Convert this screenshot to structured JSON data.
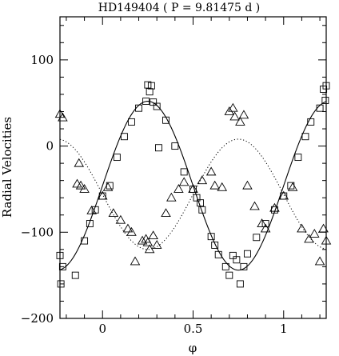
{
  "chart_data": {
    "type": "scatter",
    "title": "HD149404 ( P = 9.81475 d )",
    "xlabel": "φ",
    "ylabel": "Radial Velocities",
    "xlim": [
      -0.235,
      1.235
    ],
    "ylim": [
      -200,
      150
    ],
    "x_ticks": [
      0,
      0.5,
      1
    ],
    "x_tick_labels": [
      "0",
      "0.5",
      "1"
    ],
    "y_ticks": [
      -200,
      -100,
      0,
      100
    ],
    "y_tick_labels": [
      "−200",
      "−100",
      "0",
      "100"
    ],
    "grid": false,
    "legend": "none",
    "series": [
      {
        "marker": "square",
        "points": [
          [
            -0.235,
            -127
          ],
          [
            -0.23,
            -160
          ],
          [
            -0.22,
            -140
          ],
          [
            -0.15,
            -150
          ],
          [
            -0.1,
            -110
          ],
          [
            -0.07,
            -90
          ],
          [
            -0.04,
            -74
          ],
          [
            0.0,
            -58
          ],
          [
            0.04,
            -46
          ],
          [
            0.08,
            -13
          ],
          [
            0.12,
            11
          ],
          [
            0.16,
            28
          ],
          [
            0.2,
            44
          ],
          [
            0.24,
            52
          ],
          [
            0.25,
            71
          ],
          [
            0.26,
            63
          ],
          [
            0.27,
            70
          ],
          [
            0.28,
            51
          ],
          [
            0.3,
            46
          ],
          [
            0.31,
            -2
          ],
          [
            0.35,
            30
          ],
          [
            0.4,
            0
          ],
          [
            0.45,
            -30
          ],
          [
            0.5,
            -50
          ],
          [
            0.52,
            -60
          ],
          [
            0.54,
            -66
          ],
          [
            0.55,
            -74
          ],
          [
            0.6,
            -105
          ],
          [
            0.62,
            -115
          ],
          [
            0.64,
            -126
          ],
          [
            0.68,
            -140
          ],
          [
            0.7,
            -150
          ],
          [
            0.72,
            -127
          ],
          [
            0.74,
            -132
          ],
          [
            0.76,
            -160
          ],
          [
            0.78,
            -140
          ],
          [
            0.8,
            -125
          ],
          [
            0.85,
            -106
          ],
          [
            0.9,
            -90
          ],
          [
            0.95,
            -74
          ],
          [
            1.0,
            -58
          ],
          [
            1.04,
            -46
          ],
          [
            1.08,
            -13
          ],
          [
            1.12,
            11
          ],
          [
            1.15,
            28
          ],
          [
            1.2,
            44
          ],
          [
            1.22,
            66
          ],
          [
            1.23,
            53
          ],
          [
            1.235,
            70
          ]
        ]
      },
      {
        "marker": "triangle",
        "points": [
          [
            -0.235,
            37
          ],
          [
            -0.22,
            33
          ],
          [
            -0.13,
            -20
          ],
          [
            -0.14,
            -44
          ],
          [
            -0.12,
            -46
          ],
          [
            -0.1,
            -50
          ],
          [
            -0.06,
            -75
          ],
          [
            0.0,
            -58
          ],
          [
            0.03,
            -48
          ],
          [
            0.06,
            -78
          ],
          [
            0.1,
            -86
          ],
          [
            0.14,
            -96
          ],
          [
            0.16,
            -100
          ],
          [
            0.18,
            -134
          ],
          [
            0.22,
            -110
          ],
          [
            0.24,
            -108
          ],
          [
            0.25,
            -112
          ],
          [
            0.26,
            -120
          ],
          [
            0.28,
            -104
          ],
          [
            0.3,
            -115
          ],
          [
            0.35,
            -78
          ],
          [
            0.38,
            -60
          ],
          [
            0.42,
            -50
          ],
          [
            0.45,
            -42
          ],
          [
            0.5,
            -50
          ],
          [
            0.55,
            -40
          ],
          [
            0.6,
            -30
          ],
          [
            0.62,
            -46
          ],
          [
            0.66,
            -48
          ],
          [
            0.7,
            40
          ],
          [
            0.72,
            44
          ],
          [
            0.73,
            34
          ],
          [
            0.76,
            28
          ],
          [
            0.78,
            36
          ],
          [
            0.8,
            -46
          ],
          [
            0.84,
            -70
          ],
          [
            0.88,
            -90
          ],
          [
            0.9,
            -96
          ],
          [
            0.95,
            -72
          ],
          [
            1.0,
            -58
          ],
          [
            1.05,
            -48
          ],
          [
            1.1,
            -96
          ],
          [
            1.14,
            -108
          ],
          [
            1.17,
            -102
          ],
          [
            1.2,
            -134
          ],
          [
            1.22,
            -96
          ],
          [
            1.235,
            -110
          ]
        ]
      }
    ],
    "curves": [
      {
        "style": "solid",
        "mean": -46,
        "amplitude": 98,
        "phase": 0.25
      },
      {
        "style": "dotted",
        "mean": -56,
        "amplitude": 64,
        "phase": 0.75
      }
    ]
  }
}
